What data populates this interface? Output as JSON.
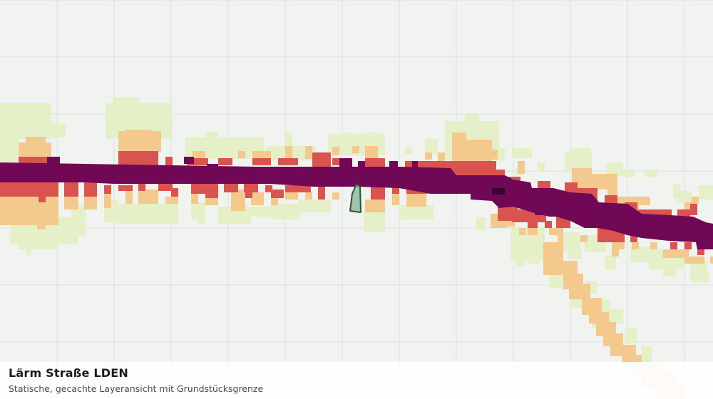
{
  "map": {
    "title": "Lärm Straße LDEN",
    "subtitle": "Statische, gecachte Layeransicht mit Grundstücksgrenze",
    "colors": {
      "background": "#f1f3f1",
      "grid": "#dadfda",
      "class_low": "#e6f0c8",
      "class_mid": "#f4c98e",
      "class_high": "#d9534f",
      "class_very_high": "#700855",
      "class_extreme": "#3a0230",
      "parcel_fill": "#8fb79c",
      "parcel_stroke": "#1f5c34"
    },
    "legend_classes": [
      "low",
      "mid",
      "high",
      "very_high",
      "extreme"
    ]
  }
}
